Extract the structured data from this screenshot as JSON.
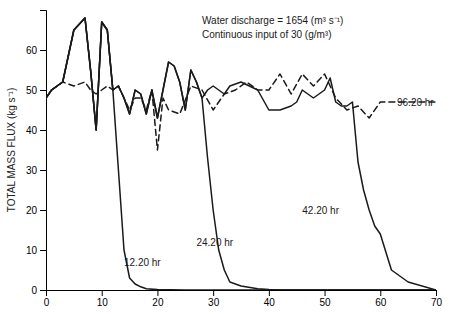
{
  "chart_data": {
    "type": "line",
    "title": "Water discharge = 1654  (m³ s⁻¹)",
    "subtitle": "Continuous input of 30 (g/m³)",
    "y_label": "TOTAL MASS FLUX  (kg s⁻¹)",
    "xlim": [
      0,
      70
    ],
    "ylim": [
      0,
      70
    ],
    "xticks": [
      0,
      10,
      20,
      30,
      40,
      50,
      60,
      70
    ],
    "yticks": [
      0,
      10,
      20,
      30,
      40,
      50,
      60
    ],
    "grid": false,
    "series": [
      {
        "color": "#1a1a1a",
        "line_style": "solid",
        "x": [
          0,
          1,
          3,
          5,
          7,
          8,
          9,
          10,
          11,
          12,
          13,
          14,
          15,
          16,
          17,
          18,
          20,
          25,
          30,
          35,
          40,
          50,
          60,
          70
        ],
        "values": [
          48,
          50,
          52,
          65,
          68,
          55,
          40,
          67,
          65,
          50,
          30,
          10,
          3,
          1.5,
          0.8,
          0.3,
          0.1,
          0,
          0,
          0,
          0,
          0,
          0,
          0
        ]
      },
      {
        "color": "#1a1a1a",
        "line_style": "solid",
        "x": [
          0,
          1,
          3,
          5,
          7,
          8,
          9,
          10,
          11,
          12,
          13,
          14,
          15,
          16,
          17,
          18,
          19,
          20,
          21,
          22,
          23,
          24,
          25,
          26,
          27,
          28,
          29,
          30,
          31,
          32,
          33,
          35,
          38,
          40,
          42,
          45,
          50,
          55,
          60,
          70
        ],
        "values": [
          48,
          50,
          52,
          65,
          68,
          55,
          40,
          67,
          65,
          50,
          51,
          48,
          44,
          50,
          49,
          44,
          50,
          43,
          50,
          57,
          56,
          52,
          45,
          55,
          52,
          48,
          33,
          20,
          10,
          5,
          2,
          1,
          0.3,
          0.1,
          0,
          0,
          0,
          0,
          0,
          0
        ]
      },
      {
        "color": "#1a1a1a",
        "line_style": "solid",
        "x": [
          0,
          1,
          3,
          5,
          7,
          8,
          9,
          10,
          11,
          12,
          13,
          14,
          15,
          16,
          17,
          18,
          19,
          20,
          21,
          22,
          23,
          24,
          25,
          26,
          27,
          28,
          29,
          30,
          31,
          32,
          33,
          35,
          38,
          40,
          42,
          44,
          45,
          46,
          48,
          50,
          51,
          52,
          53,
          54,
          55,
          56,
          57,
          58,
          59,
          60,
          62,
          65,
          70
        ],
        "values": [
          48,
          50,
          52,
          65,
          68,
          55,
          40,
          67,
          65,
          50,
          51,
          48,
          44,
          50,
          49,
          44,
          50,
          43,
          50,
          57,
          56,
          52,
          45,
          55,
          52,
          48,
          50,
          51,
          50,
          49,
          51,
          52,
          50,
          45,
          45,
          46,
          47,
          50,
          48,
          50,
          53,
          47,
          46,
          46,
          47,
          32,
          25,
          20,
          16,
          14,
          5,
          2,
          0
        ]
      },
      {
        "color": "#1a1a1a",
        "line_style": "dashed",
        "x": [
          0,
          1,
          3,
          5,
          7,
          8,
          9,
          10,
          11,
          12,
          13,
          14,
          15,
          16,
          17,
          18,
          19,
          20,
          21,
          22,
          24,
          26,
          28,
          30,
          32,
          34,
          36,
          38,
          40,
          42,
          44,
          46,
          48,
          50,
          52,
          54,
          56,
          58,
          60,
          62,
          65,
          68,
          70
        ],
        "values": [
          48,
          50,
          52,
          51,
          52,
          50,
          49,
          50,
          51,
          50,
          51,
          48,
          45,
          48,
          48,
          45,
          50,
          35,
          48,
          45,
          44,
          51,
          50,
          45,
          49,
          50,
          52,
          50,
          50,
          54,
          49,
          54,
          51,
          54,
          48,
          45,
          46,
          43,
          47,
          47,
          47,
          47,
          47
        ]
      }
    ],
    "annotations": [
      {
        "text": "12.20 hr",
        "x": 14,
        "y": 6
      },
      {
        "text": "24.20 hr",
        "x": 27,
        "y": 11
      },
      {
        "text": "42.20 hr",
        "x": 46,
        "y": 19
      },
      {
        "text": "96.20 hr",
        "x": 63,
        "y": 46
      }
    ]
  }
}
